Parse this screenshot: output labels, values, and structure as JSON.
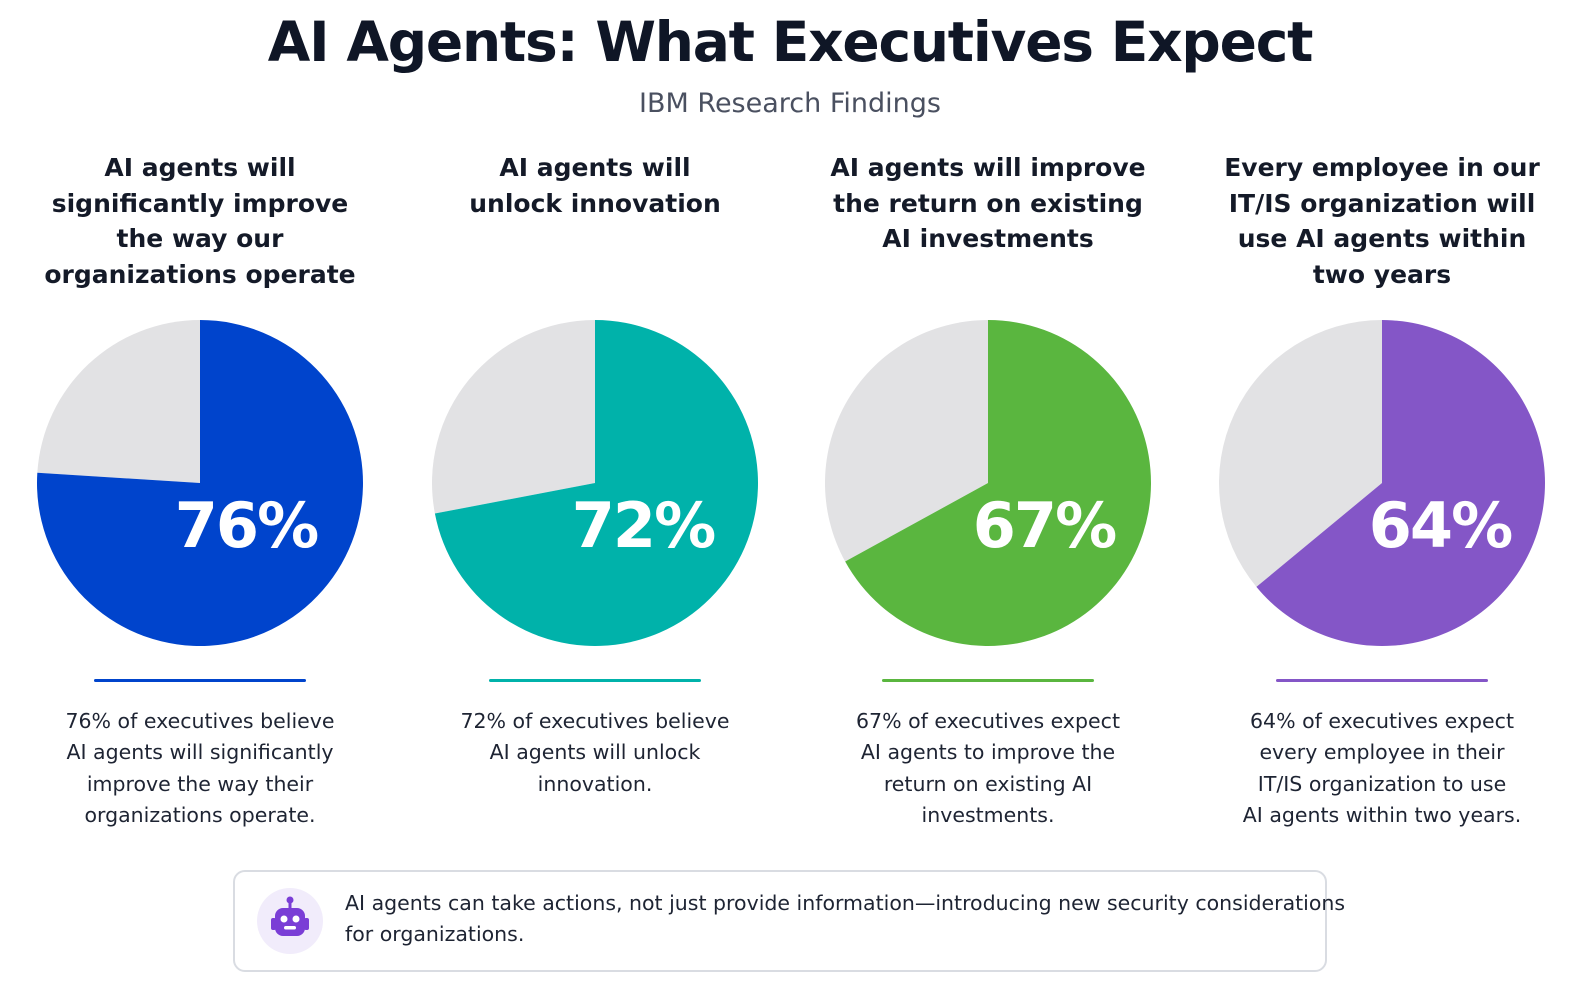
{
  "header": {
    "title": "AI Agents: What Executives Expect",
    "subtitle": "IBM Research Findings"
  },
  "colors": {
    "remainder": "#e2e2e4",
    "blue": "#0044cc",
    "teal": "#00b2aa",
    "green": "#5ab63f",
    "purple": "#8456c7",
    "text_dark": "#121826"
  },
  "chart_data": [
    {
      "type": "pie",
      "title": [
        "AI agents will",
        "significantly improve",
        "the way our",
        "organizations operate"
      ],
      "values": [
        76,
        24
      ],
      "label": "76%",
      "color": "#0044cc",
      "description": [
        "76% of executives believe",
        "AI agents will significantly",
        "improve the way their",
        "organizations operate."
      ]
    },
    {
      "type": "pie",
      "title": [
        "AI agents will",
        "unlock innovation"
      ],
      "values": [
        72,
        28
      ],
      "label": "72%",
      "color": "#00b2aa",
      "description": [
        "72% of executives believe",
        "AI agents will unlock",
        "innovation."
      ]
    },
    {
      "type": "pie",
      "title": [
        "AI agents will improve",
        "the return on existing",
        "AI investments"
      ],
      "values": [
        67,
        33
      ],
      "label": "67%",
      "color": "#5ab63f",
      "description": [
        "67% of executives expect",
        "AI agents to improve the",
        "return on existing AI",
        "investments."
      ]
    },
    {
      "type": "pie",
      "title": [
        "Every employee in our",
        "IT/IS organization will",
        "use AI agents within",
        "two years"
      ],
      "values": [
        64,
        36
      ],
      "label": "64%",
      "color": "#8456c7",
      "description": [
        "64% of executives expect",
        "every employee in their",
        "IT/IS organization to use",
        "AI agents within two years."
      ]
    }
  ],
  "callout": {
    "icon": "robot-icon",
    "lines": [
      "AI agents can take actions, not just provide information—introducing new security considerations",
      "for organizations."
    ]
  }
}
